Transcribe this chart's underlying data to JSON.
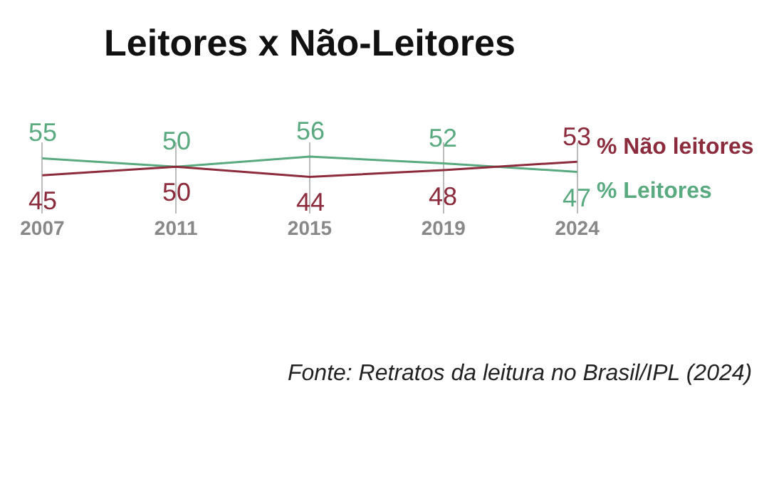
{
  "chart_data": {
    "type": "line",
    "title": "Leitores x Não-Leitores",
    "categories": [
      "2007",
      "2011",
      "2015",
      "2019",
      "2024"
    ],
    "series": [
      {
        "name": "% Leitores",
        "color": "#5aaa80",
        "values": [
          55,
          50,
          56,
          52,
          47
        ]
      },
      {
        "name": "% Não leitores",
        "color": "#8b2b3b",
        "values": [
          45,
          50,
          44,
          48,
          53
        ]
      }
    ],
    "data_labels": true,
    "grid": "x",
    "legend": false,
    "marker": "none",
    "line_style": "solid",
    "annotations": [
      "Fonte: Retratos da leitura no Brasil/IPL (2024)"
    ]
  }
}
